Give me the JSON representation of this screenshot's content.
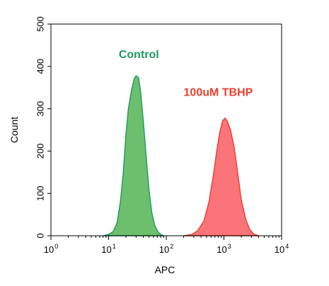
{
  "chart_data": {
    "type": "area",
    "xlabel": "APC",
    "ylabel": "Count",
    "xscale": "log",
    "xlim": [
      1,
      10000
    ],
    "ylim": [
      0,
      500
    ],
    "x_ticks": [
      {
        "base": "10",
        "exp": "0"
      },
      {
        "base": "10",
        "exp": "1"
      },
      {
        "base": "10",
        "exp": "2"
      },
      {
        "base": "10",
        "exp": "3"
      },
      {
        "base": "10",
        "exp": "4"
      }
    ],
    "y_ticks": [
      "0",
      "100",
      "200",
      "300",
      "400",
      "500"
    ],
    "grid": false,
    "series": [
      {
        "name": "Control",
        "color": "#1e9a5e",
        "fill": "#6cbf6c",
        "points": [
          [
            8,
            0
          ],
          [
            10,
            3
          ],
          [
            12,
            10
          ],
          [
            14,
            30
          ],
          [
            16,
            80
          ],
          [
            18,
            150
          ],
          [
            20,
            240
          ],
          [
            22,
            300
          ],
          [
            25,
            345
          ],
          [
            28,
            372
          ],
          [
            30,
            378
          ],
          [
            33,
            373
          ],
          [
            36,
            340
          ],
          [
            40,
            270
          ],
          [
            45,
            185
          ],
          [
            50,
            110
          ],
          [
            56,
            55
          ],
          [
            63,
            25
          ],
          [
            71,
            10
          ],
          [
            80,
            3
          ],
          [
            90,
            0
          ]
        ]
      },
      {
        "name": "100uM TBHP",
        "color": "#e8412e",
        "fill": "#fa7479",
        "points": [
          [
            200,
            0
          ],
          [
            280,
            3
          ],
          [
            350,
            12
          ],
          [
            450,
            35
          ],
          [
            550,
            80
          ],
          [
            650,
            140
          ],
          [
            750,
            200
          ],
          [
            850,
            245
          ],
          [
            950,
            272
          ],
          [
            1050,
            278
          ],
          [
            1150,
            270
          ],
          [
            1300,
            250
          ],
          [
            1500,
            210
          ],
          [
            1750,
            145
          ],
          [
            2000,
            85
          ],
          [
            2400,
            38
          ],
          [
            2800,
            15
          ],
          [
            3300,
            4
          ],
          [
            4000,
            0
          ]
        ]
      }
    ],
    "annotations": [
      {
        "text": "Control",
        "color": "#1e9a5e",
        "x": 15,
        "y": 420
      },
      {
        "text": "100uM TBHP",
        "color": "#e8412e",
        "x": 200,
        "y": 330
      }
    ]
  }
}
